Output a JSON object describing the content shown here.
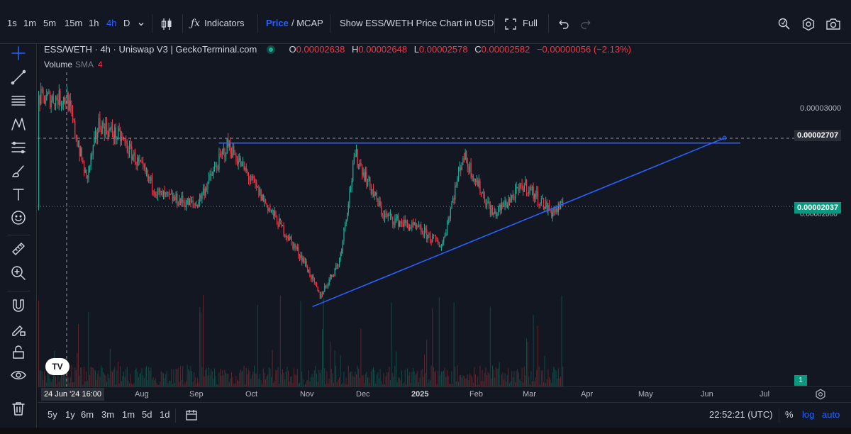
{
  "toolbar": {
    "intervals": [
      "1s",
      "1m",
      "5m",
      "15m",
      "1h",
      "4h",
      "D"
    ],
    "active_interval": "4h",
    "indicators_label": "Indicators",
    "price_label": "Price",
    "mcap_label": "/ MCAP",
    "show_label": "Show ESS/WETH Price Chart in USD",
    "full_label": "Full"
  },
  "legend": {
    "symbol": "ESS/WETH · 4h · Uniswap V3 | GeckoTerminal.com",
    "o_key": "O",
    "o_val": "0.00002638",
    "h_key": "H",
    "h_val": "0.00002648",
    "l_key": "L",
    "l_val": "0.00002578",
    "c_key": "C",
    "c_val": "0.00002582",
    "change": "−0.00000056 (−2.13%)",
    "volume_label": "Volume",
    "volume_sma": "SMA",
    "volume_len": "4"
  },
  "price_scale": {
    "level_top": "0.00003000",
    "crosshair_price": "0.00002707",
    "last_price": "0.00002037",
    "shadow_price": "0.00002000",
    "volume_value": "1"
  },
  "time_axis": {
    "cursor_label": "24 Jun '24   16:00",
    "labels": [
      "Aug",
      "Sep",
      "Oct",
      "Nov",
      "Dec",
      "2025",
      "Feb",
      "Mar",
      "Apr",
      "May",
      "Jun",
      "Jul"
    ]
  },
  "bottom": {
    "ranges": [
      "5y",
      "1y",
      "6m",
      "3m",
      "1m",
      "5d",
      "1d"
    ],
    "clock": "22:52:21 (UTC)",
    "percent_label": "%",
    "log_label": "log",
    "auto_label": "auto"
  },
  "chart_data": {
    "type": "candlestick",
    "pair": "ESS/WETH",
    "interval": "4h",
    "price_range": [
      9.5e-06,
      3.18e-05
    ],
    "approx_close_path": [
      {
        "date": "2024-06-24",
        "price": 3.1e-05
      },
      {
        "date": "2024-07-05",
        "price": 2.3e-05
      },
      {
        "date": "2024-07-12",
        "price": 2.85e-05
      },
      {
        "date": "2024-07-25",
        "price": 2.7e-05
      },
      {
        "date": "2024-08-15",
        "price": 2.15e-05
      },
      {
        "date": "2024-09-05",
        "price": 2.05e-05
      },
      {
        "date": "2024-09-23",
        "price": 2.65e-05
      },
      {
        "date": "2024-10-15",
        "price": 2.05e-05
      },
      {
        "date": "2024-11-05",
        "price": 1.5e-05
      },
      {
        "date": "2024-11-14",
        "price": 1.15e-05
      },
      {
        "date": "2024-11-25",
        "price": 1.5e-05
      },
      {
        "date": "2024-12-04",
        "price": 2.55e-05
      },
      {
        "date": "2024-12-20",
        "price": 1.95e-05
      },
      {
        "date": "2025-01-10",
        "price": 1.8e-05
      },
      {
        "date": "2025-01-22",
        "price": 1.65e-05
      },
      {
        "date": "2025-02-03",
        "price": 2.55e-05
      },
      {
        "date": "2025-02-20",
        "price": 1.95e-05
      },
      {
        "date": "2025-03-10",
        "price": 2.25e-05
      },
      {
        "date": "2025-03-25",
        "price": 1.98e-05
      },
      {
        "date": "2025-04-01",
        "price": 2.04e-05
      }
    ],
    "drawings": [
      {
        "type": "horizontal_resistance",
        "price": 2.66e-05,
        "from": "2024-09-18",
        "to": "2025-07-10"
      },
      {
        "type": "rising_trendline",
        "from": {
          "date": "2024-11-10",
          "price": 1.05e-05
        },
        "to": {
          "date": "2025-07-01",
          "price": 2.71e-05
        }
      }
    ]
  },
  "colors": {
    "up": "#22ab94",
    "down": "#f23645",
    "drawing": "#2962ff",
    "background": "#131722"
  }
}
